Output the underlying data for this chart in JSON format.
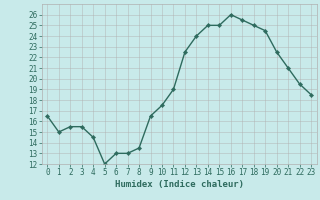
{
  "x": [
    0,
    1,
    2,
    3,
    4,
    5,
    6,
    7,
    8,
    9,
    10,
    11,
    12,
    13,
    14,
    15,
    16,
    17,
    18,
    19,
    20,
    21,
    22,
    23
  ],
  "y": [
    16.5,
    15.0,
    15.5,
    15.5,
    14.5,
    12.0,
    13.0,
    13.0,
    13.5,
    16.5,
    17.5,
    19.0,
    22.5,
    24.0,
    25.0,
    25.0,
    26.0,
    25.5,
    25.0,
    24.5,
    22.5,
    21.0,
    19.5,
    18.5
  ],
  "line_color": "#2e6b5e",
  "marker_color": "#2e6b5e",
  "bg_color": "#c8eaea",
  "grid_color": "#b0b0b0",
  "xlabel": "Humidex (Indice chaleur)",
  "ylim": [
    12,
    27
  ],
  "yticks": [
    12,
    13,
    14,
    15,
    16,
    17,
    18,
    19,
    20,
    21,
    22,
    23,
    24,
    25,
    26
  ],
  "xticks": [
    0,
    1,
    2,
    3,
    4,
    5,
    6,
    7,
    8,
    9,
    10,
    11,
    12,
    13,
    14,
    15,
    16,
    17,
    18,
    19,
    20,
    21,
    22,
    23
  ],
  "xlabel_fontsize": 6.5,
  "tick_fontsize": 5.5,
  "linewidth": 1.0,
  "markersize": 2.2
}
